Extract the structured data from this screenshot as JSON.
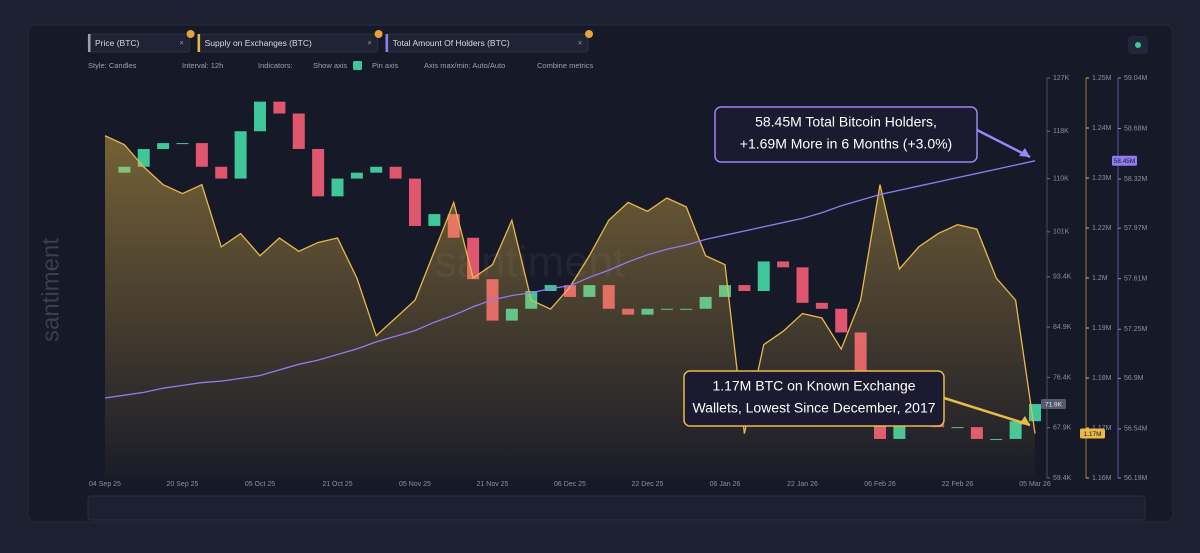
{
  "ui": {
    "tabs": [
      "Price (BTC)",
      "Supply on Exchanges (BTC)",
      "Total Amount Of Holders (BTC)"
    ],
    "toolbar": [
      "Style: Candles",
      "Interval: 12h",
      "Indicators:",
      "Show axis",
      "Pin axis",
      "Axis max/min: Auto/Auto",
      "Combine metrics"
    ],
    "watermark": "santiment"
  },
  "chart_data": {
    "type": "combo",
    "categories": [
      "04 Sep 25",
      null,
      null,
      null,
      "20 Sep 25",
      null,
      null,
      null,
      "05 Oct 25",
      null,
      null,
      null,
      "21 Oct 25",
      null,
      null,
      null,
      "05 Nov 25",
      null,
      null,
      null,
      "21 Nov 25",
      null,
      null,
      null,
      "06 Dec 25",
      null,
      null,
      null,
      "22 Dec 25",
      null,
      null,
      null,
      "06 Jan 26",
      null,
      null,
      null,
      "22 Jan 26",
      null,
      null,
      null,
      "06 Feb 26",
      null,
      null,
      null,
      "22 Feb 26",
      null,
      null,
      null,
      "05 Mar 26"
    ],
    "ylim": [
      59400,
      127000
    ],
    "yticks": [
      {
        "value": 127000,
        "label": "127K"
      },
      {
        "value": 118000,
        "label": "118K"
      },
      {
        "value": 110000,
        "label": "110K"
      },
      {
        "value": 101000,
        "label": "101K"
      },
      {
        "value": 93400,
        "label": "93.4K"
      },
      {
        "value": 84900,
        "label": "84.9K"
      },
      {
        "value": 76400,
        "label": "76.4K"
      },
      {
        "value": 67900,
        "label": "67.9K"
      },
      {
        "value": 59400,
        "label": "59.4K"
      }
    ],
    "y2lim": [
      1160000,
      1250000
    ],
    "y2ticks": [
      {
        "value": 1250000,
        "label": "1.25M"
      },
      {
        "value": 1238750,
        "label": "1.24M"
      },
      {
        "value": 1227500,
        "label": "1.23M"
      },
      {
        "value": 1216250,
        "label": "1.22M"
      },
      {
        "value": 1205000,
        "label": "1.2M"
      },
      {
        "value": 1193750,
        "label": "1.19M"
      },
      {
        "value": 1182500,
        "label": "1.18M"
      },
      {
        "value": 1171250,
        "label": "1.17M"
      },
      {
        "value": 1160000,
        "label": "1.16M"
      }
    ],
    "y3lim": [
      56190000,
      59040000
    ],
    "y3ticks": [
      {
        "value": 59040000,
        "label": "59.04M"
      },
      {
        "value": 58680000,
        "label": "58.68M"
      },
      {
        "value": 58320000,
        "label": "58.32M"
      },
      {
        "value": 57970000,
        "label": "57.97M"
      },
      {
        "value": 57610000,
        "label": "57.61M"
      },
      {
        "value": 57250000,
        "label": "57.25M"
      },
      {
        "value": 56900000,
        "label": "56.9M"
      },
      {
        "value": 56540000,
        "label": "56.54M"
      },
      {
        "value": 56190000,
        "label": "56.19M"
      }
    ],
    "series": [
      {
        "name": "Price (BTC)",
        "type": "candlestick",
        "axis": "y",
        "up_color": "#3fc79a",
        "down_color": "#e0566f",
        "last_label": "71.9K",
        "values": [
          111000,
          112000,
          115000,
          116000,
          116000,
          112000,
          110000,
          118000,
          123000,
          121000,
          115000,
          107000,
          110000,
          111000,
          112000,
          110000,
          102000,
          104000,
          100000,
          93000,
          86000,
          88000,
          91000,
          92000,
          90000,
          92000,
          88000,
          87000,
          88000,
          88000,
          88000,
          90000,
          92000,
          91000,
          96000,
          95000,
          89000,
          88000,
          84000,
          76000,
          66000,
          69000,
          69000,
          68000,
          68000,
          66000,
          66000,
          69000,
          71900
        ]
      },
      {
        "name": "Supply on Exchanges (BTC)",
        "type": "area",
        "axis": "y2",
        "color": "#e9b949",
        "last_label": "1.17M",
        "values": [
          1237000,
          1235000,
          1230000,
          1226000,
          1224000,
          1226000,
          1212000,
          1215000,
          1210000,
          1214000,
          1211000,
          1213000,
          1214000,
          1205000,
          1192000,
          1196000,
          1200000,
          1211000,
          1222000,
          1205000,
          1208000,
          1218000,
          1200000,
          1198000,
          1203000,
          1210000,
          1218000,
          1222000,
          1220000,
          1223000,
          1221000,
          1210000,
          1208000,
          1170000,
          1190000,
          1193000,
          1197000,
          1196000,
          1189000,
          1200000,
          1226000,
          1207000,
          1212000,
          1215000,
          1217000,
          1216000,
          1205000,
          1200000,
          1170000
        ]
      },
      {
        "name": "Total Amount Of Holders (BTC)",
        "type": "line",
        "axis": "y3",
        "color": "#8f7cf0",
        "last_label": "58.45M",
        "values": [
          56760000,
          56780000,
          56800000,
          56830000,
          56850000,
          56870000,
          56880000,
          56900000,
          56920000,
          56960000,
          57000000,
          57030000,
          57070000,
          57110000,
          57160000,
          57200000,
          57240000,
          57300000,
          57350000,
          57410000,
          57460000,
          57490000,
          57510000,
          57540000,
          57560000,
          57620000,
          57670000,
          57730000,
          57780000,
          57820000,
          57850000,
          57890000,
          57920000,
          57950000,
          57980000,
          58010000,
          58040000,
          58080000,
          58130000,
          58170000,
          58210000,
          58240000,
          58270000,
          58300000,
          58330000,
          58360000,
          58390000,
          58420000,
          58450000
        ]
      }
    ],
    "annotations": [
      {
        "lines": [
          "58.45M Total Bitcoin Holders,",
          "+1.69M More in 6 Months (+3.0%)"
        ],
        "color": "#9b86f5"
      },
      {
        "lines": [
          "1.17M BTC on Known Exchange",
          "Wallets, Lowest Since December, 2017"
        ],
        "color": "#e9b949"
      }
    ]
  }
}
